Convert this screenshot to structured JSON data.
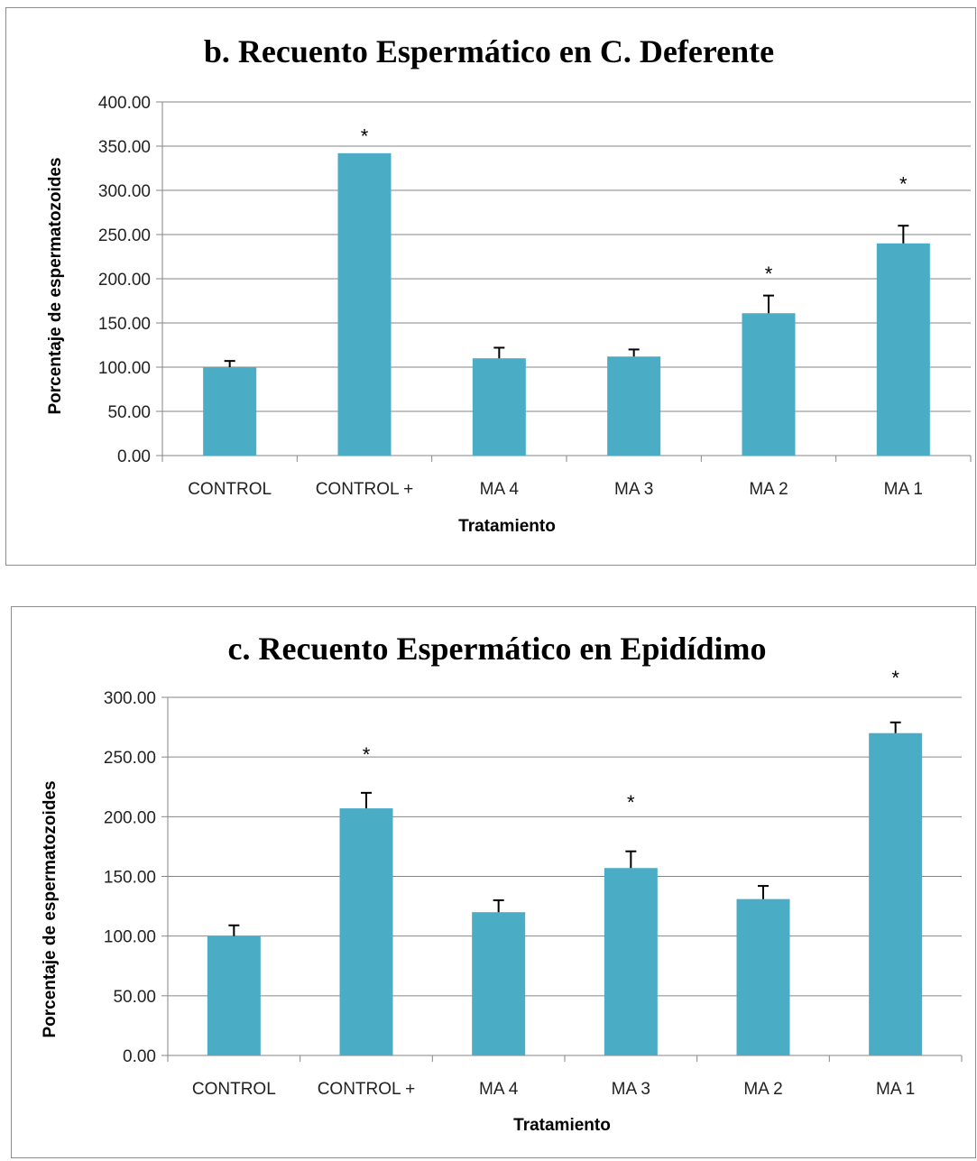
{
  "chart_data": [
    {
      "type": "bar",
      "title": "b. Recuento Espermático en C. Deferente",
      "xlabel": "Tratamiento",
      "ylabel": "Porcentaje de espermatozoides",
      "categories": [
        "CONTROL",
        "CONTROL +",
        "MA 4",
        "MA 3",
        "MA 2",
        "MA 1"
      ],
      "values": [
        100,
        342,
        110,
        112,
        161,
        240
      ],
      "errors": [
        7,
        0,
        12,
        8,
        20,
        20
      ],
      "significance": [
        "",
        "*",
        "",
        "",
        "*",
        "*"
      ],
      "significance_y": [
        0,
        368,
        0,
        0,
        212,
        314
      ],
      "ylim": [
        0,
        400
      ],
      "yticks": [
        "0.00",
        "50.00",
        "100.00",
        "150.00",
        "200.00",
        "250.00",
        "300.00",
        "350.00",
        "400.00"
      ],
      "grid": true,
      "bar_color": "#4BACC6"
    },
    {
      "type": "bar",
      "title": "c. Recuento Espermático en Epidídimo",
      "xlabel": "Tratamiento",
      "ylabel": "Porcentaje de espermatozoides",
      "categories": [
        "CONTROL",
        "CONTROL +",
        "MA 4",
        "MA 3",
        "MA 2",
        "MA 1"
      ],
      "values": [
        100,
        207,
        120,
        157,
        131,
        270
      ],
      "errors": [
        9,
        13,
        10,
        14,
        11,
        9
      ],
      "significance": [
        "",
        "*",
        "",
        "*",
        "",
        "*"
      ],
      "significance_y": [
        0,
        257,
        0,
        217,
        0,
        321
      ],
      "ylim": [
        0,
        300
      ],
      "yticks": [
        "0.00",
        "50.00",
        "100.00",
        "150.00",
        "200.00",
        "250.00",
        "300.00"
      ],
      "grid": true,
      "bar_color": "#4BACC6"
    }
  ]
}
